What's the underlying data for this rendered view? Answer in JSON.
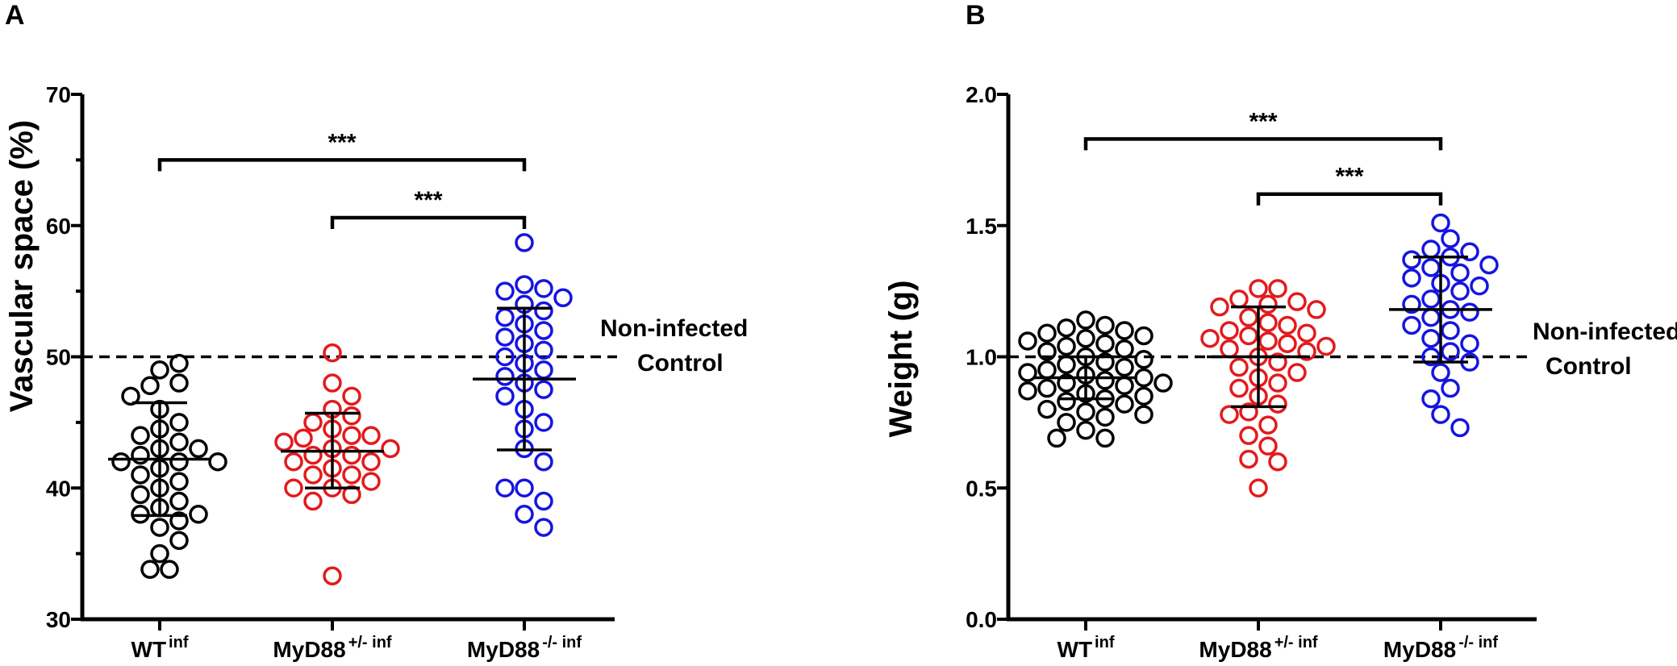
{
  "chart_data": [
    {
      "panel": "A",
      "type": "scatter",
      "ylabel": "Vascular space (%)",
      "ylim": [
        30,
        70
      ],
      "yticks": [
        30,
        40,
        50,
        60,
        70
      ],
      "reference_line": {
        "value": 50,
        "label_line1": "Non-infected",
        "label_line2": "Control"
      },
      "groups": [
        {
          "name": "WT",
          "sup": "inf",
          "color": "#000000",
          "mean": 42.2,
          "sd_low": 37.9,
          "sd_high": 46.5,
          "values": [
            49.0,
            49.5,
            48.0,
            47.8,
            47.0,
            46.0,
            45.0,
            44.5,
            44.0,
            43.5,
            43.0,
            43.0,
            42.5,
            42.0,
            42.0,
            42.0,
            41.5,
            41.0,
            40.0,
            40.5,
            39.5,
            39.0,
            38.5,
            38.0,
            38.0,
            37.5,
            37.0,
            36.0,
            35.0,
            33.8,
            33.8
          ]
        },
        {
          "name": "MyD88",
          "sup": "+/- inf",
          "color": "#e31a1c",
          "mean": 42.8,
          "sd_low": 40.0,
          "sd_high": 45.7,
          "values": [
            50.3,
            48.0,
            47.0,
            46.0,
            45.5,
            45.0,
            44.5,
            44.0,
            44.0,
            43.8,
            43.5,
            43.0,
            43.0,
            42.5,
            42.5,
            42.0,
            42.0,
            41.5,
            41.0,
            41.0,
            40.5,
            40.0,
            40.0,
            39.5,
            39.0,
            33.3
          ]
        },
        {
          "name": "MyD88",
          "sup": "-/- inf",
          "color": "#1515e0",
          "mean": 48.3,
          "sd_low": 42.9,
          "sd_high": 53.7,
          "values": [
            58.7,
            55.5,
            55.2,
            55.0,
            54.5,
            54.0,
            53.5,
            53.0,
            52.5,
            52.0,
            51.5,
            51.0,
            50.5,
            50.0,
            49.5,
            49.0,
            48.5,
            48.0,
            47.5,
            47.0,
            46.0,
            45.0,
            44.5,
            43.0,
            42.0,
            40.0,
            39.0,
            38.0,
            37.0,
            40.0
          ]
        }
      ],
      "significance": [
        {
          "from": 0,
          "to": 2,
          "label": "***",
          "y": 65
        },
        {
          "from": 1,
          "to": 2,
          "label": "***",
          "y": 60.6
        }
      ]
    },
    {
      "panel": "B",
      "type": "scatter",
      "ylabel": "Weight (g)",
      "ylim": [
        0.0,
        2.0
      ],
      "yticks": [
        "0.0",
        "0.5",
        "1.0",
        "1.5",
        "2.0"
      ],
      "reference_line": {
        "value": 1.0,
        "label_line1": "Non-infected",
        "label_line2": "Control"
      },
      "groups": [
        {
          "name": "WT",
          "sup": "inf",
          "color": "#000000",
          "mean": 0.92,
          "sd_low": 0.84,
          "sd_high": 1.0,
          "values": [
            1.14,
            1.12,
            1.11,
            1.1,
            1.09,
            1.08,
            1.07,
            1.06,
            1.05,
            1.04,
            1.03,
            1.02,
            1.0,
            0.99,
            0.98,
            0.97,
            0.96,
            0.95,
            0.94,
            0.93,
            0.92,
            0.91,
            0.9,
            0.9,
            0.89,
            0.88,
            0.87,
            0.86,
            0.85,
            0.84,
            0.83,
            0.82,
            0.8,
            0.79,
            0.78,
            0.77,
            0.75,
            0.72,
            0.69,
            0.69
          ]
        },
        {
          "name": "MyD88",
          "sup": "+/- inf",
          "color": "#e31a1c",
          "mean": 1.0,
          "sd_low": 0.81,
          "sd_high": 1.19,
          "values": [
            1.26,
            1.26,
            1.22,
            1.21,
            1.2,
            1.19,
            1.18,
            1.15,
            1.13,
            1.12,
            1.1,
            1.09,
            1.08,
            1.07,
            1.06,
            1.05,
            1.04,
            1.03,
            1.02,
            1.0,
            0.98,
            0.96,
            0.94,
            0.92,
            0.9,
            0.88,
            0.85,
            0.82,
            0.79,
            0.78,
            0.74,
            0.7,
            0.66,
            0.61,
            0.6,
            0.5
          ]
        },
        {
          "name": "MyD88",
          "sup": "-/- inf",
          "color": "#1515e0",
          "mean": 1.18,
          "sd_low": 0.98,
          "sd_high": 1.38,
          "values": [
            1.51,
            1.45,
            1.41,
            1.4,
            1.38,
            1.37,
            1.35,
            1.34,
            1.32,
            1.3,
            1.28,
            1.27,
            1.25,
            1.22,
            1.2,
            1.18,
            1.17,
            1.15,
            1.12,
            1.1,
            1.07,
            1.05,
            1.02,
            1.0,
            0.98,
            0.94,
            0.88,
            0.84,
            0.78,
            0.73
          ]
        }
      ],
      "significance": [
        {
          "from": 0,
          "to": 2,
          "label": "***",
          "y": 1.83
        },
        {
          "from": 1,
          "to": 2,
          "label": "***",
          "y": 1.62
        }
      ]
    }
  ]
}
